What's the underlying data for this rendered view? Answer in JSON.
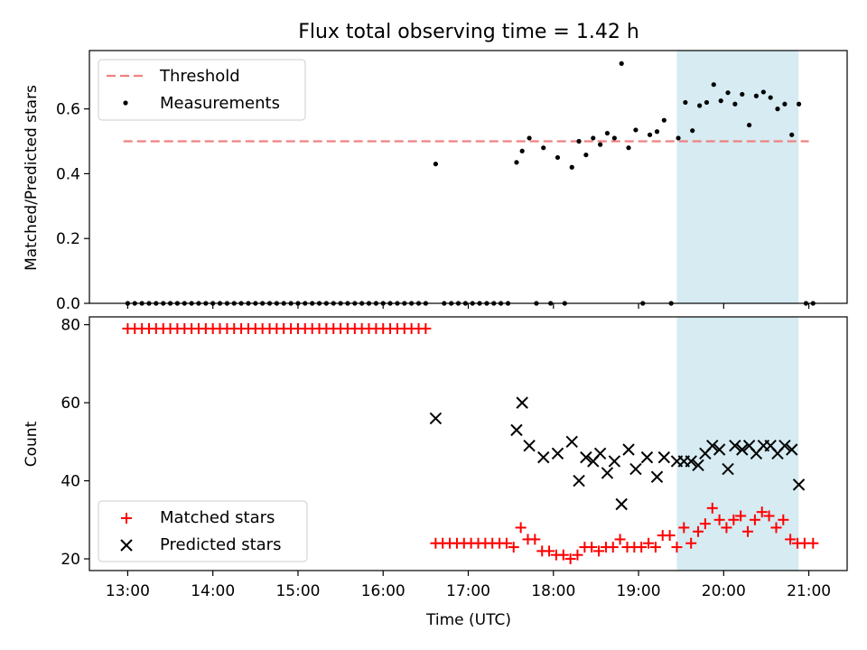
{
  "chart_data": [
    {
      "type": "scatter",
      "title": "Flux total observing time = 1.42 h",
      "xlabel": "",
      "ylabel": "Matched/Predicted stars",
      "ylim": [
        0,
        0.78
      ],
      "xlim": [
        12.55,
        21.45
      ],
      "yticks": [
        0.0,
        0.2,
        0.4,
        0.6
      ],
      "ytick_labels": [
        "0.0",
        "0.2",
        "0.4",
        "0.6"
      ],
      "highlight_span": [
        19.45,
        20.88
      ],
      "threshold": {
        "name": "Threshold",
        "y": 0.5,
        "x": [
          12.95,
          21.0
        ],
        "color": "#f08080"
      },
      "legend_loc": "upper-left",
      "series": [
        {
          "name": "Measurements",
          "color": "#000000",
          "x": [
            13.0,
            13.083,
            13.167,
            13.25,
            13.333,
            13.417,
            13.5,
            13.583,
            13.667,
            13.75,
            13.833,
            13.917,
            14.0,
            14.083,
            14.167,
            14.25,
            14.333,
            14.417,
            14.5,
            14.583,
            14.667,
            14.75,
            14.833,
            14.917,
            15.0,
            15.083,
            15.167,
            15.25,
            15.333,
            15.417,
            15.5,
            15.583,
            15.667,
            15.75,
            15.833,
            15.917,
            16.0,
            16.083,
            16.167,
            16.25,
            16.333,
            16.417,
            16.5,
            16.617,
            16.717,
            16.8,
            16.883,
            16.967,
            17.05,
            17.133,
            17.217,
            17.3,
            17.383,
            17.467,
            17.567,
            17.633,
            17.717,
            17.8,
            17.883,
            17.967,
            18.05,
            18.133,
            18.217,
            18.3,
            18.383,
            18.467,
            18.55,
            18.633,
            18.717,
            18.8,
            18.883,
            18.967,
            19.05,
            19.133,
            19.217,
            19.3,
            19.383,
            19.467,
            19.55,
            19.633,
            19.717,
            19.8,
            19.883,
            19.967,
            20.05,
            20.133,
            20.217,
            20.3,
            20.383,
            20.467,
            20.55,
            20.633,
            20.717,
            20.8,
            20.883,
            20.967,
            21.05
          ],
          "y": [
            0,
            0,
            0,
            0,
            0,
            0,
            0,
            0,
            0,
            0,
            0,
            0,
            0,
            0,
            0,
            0,
            0,
            0,
            0,
            0,
            0,
            0,
            0,
            0,
            0,
            0,
            0,
            0,
            0,
            0,
            0,
            0,
            0,
            0,
            0,
            0,
            0,
            0,
            0,
            0,
            0,
            0,
            0,
            0.43,
            0,
            0,
            0,
            0,
            0,
            0,
            0,
            0,
            0,
            0,
            0.435,
            0.47,
            0.51,
            0,
            0.48,
            0,
            0.45,
            0,
            0.42,
            0.5,
            0.458,
            0.51,
            0.49,
            0.525,
            0.51,
            0.74,
            0.48,
            0.535,
            0,
            0.52,
            0.53,
            0.565,
            0,
            0.51,
            0.62,
            0.533,
            0.61,
            0.62,
            0.675,
            0.625,
            0.65,
            0.615,
            0.645,
            0.55,
            0.64,
            0.652,
            0.635,
            0.6,
            0.615,
            0.52,
            0.615,
            0,
            0
          ]
        }
      ]
    },
    {
      "type": "scatter",
      "title": "",
      "xlabel": "Time (UTC)",
      "ylabel": "Count",
      "ylim": [
        17,
        82
      ],
      "xlim": [
        12.55,
        21.45
      ],
      "yticks": [
        20,
        40,
        60,
        80
      ],
      "ytick_labels": [
        "20",
        "40",
        "60",
        "80"
      ],
      "xticks": [
        13,
        14,
        15,
        16,
        17,
        18,
        19,
        20,
        21
      ],
      "xtick_labels": [
        "13:00",
        "14:00",
        "15:00",
        "16:00",
        "17:00",
        "18:00",
        "19:00",
        "20:00",
        "21:00"
      ],
      "highlight_span": [
        19.45,
        20.88
      ],
      "legend_loc": "lower-left",
      "series": [
        {
          "name": "Matched stars",
          "marker": "plus",
          "color": "#ff0000",
          "x": [
            13.0,
            13.083,
            13.167,
            13.25,
            13.333,
            13.417,
            13.5,
            13.583,
            13.667,
            13.75,
            13.833,
            13.917,
            14.0,
            14.083,
            14.167,
            14.25,
            14.333,
            14.417,
            14.5,
            14.583,
            14.667,
            14.75,
            14.833,
            14.917,
            15.0,
            15.083,
            15.167,
            15.25,
            15.333,
            15.417,
            15.5,
            15.583,
            15.667,
            15.75,
            15.833,
            15.917,
            16.0,
            16.083,
            16.167,
            16.25,
            16.333,
            16.417,
            16.5,
            16.617,
            16.7,
            16.783,
            16.867,
            16.95,
            17.033,
            17.117,
            17.2,
            17.283,
            17.367,
            17.45,
            17.533,
            17.617,
            17.7,
            17.783,
            17.867,
            17.95,
            18.033,
            18.117,
            18.2,
            18.283,
            18.367,
            18.45,
            18.533,
            18.617,
            18.7,
            18.783,
            18.867,
            18.95,
            19.033,
            19.117,
            19.2,
            19.283,
            19.367,
            19.45,
            19.533,
            19.617,
            19.7,
            19.783,
            19.867,
            19.95,
            20.033,
            20.117,
            20.2,
            20.283,
            20.367,
            20.45,
            20.533,
            20.617,
            20.7,
            20.783,
            20.867,
            20.95,
            21.05
          ],
          "y": [
            79,
            79,
            79,
            79,
            79,
            79,
            79,
            79,
            79,
            79,
            79,
            79,
            79,
            79,
            79,
            79,
            79,
            79,
            79,
            79,
            79,
            79,
            79,
            79,
            79,
            79,
            79,
            79,
            79,
            79,
            79,
            79,
            79,
            79,
            79,
            79,
            79,
            79,
            79,
            79,
            79,
            79,
            79,
            24,
            24,
            24,
            24,
            24,
            24,
            24,
            24,
            24,
            24,
            24,
            23,
            28,
            25,
            25,
            22,
            22,
            21,
            21,
            20,
            21,
            23,
            23,
            22,
            23,
            23,
            25,
            23,
            23,
            23,
            24,
            23,
            26,
            26,
            23,
            28,
            24,
            27,
            29,
            33,
            30,
            28,
            30,
            31,
            27,
            30,
            32,
            31,
            28,
            30,
            25,
            24,
            24,
            24
          ]
        },
        {
          "name": "Predicted stars",
          "marker": "x",
          "color": "#000000",
          "x": [
            16.617,
            17.567,
            17.633,
            17.717,
            17.883,
            18.05,
            18.217,
            18.3,
            18.383,
            18.467,
            18.55,
            18.633,
            18.717,
            18.8,
            18.883,
            18.967,
            19.1,
            19.217,
            19.3,
            19.45,
            19.533,
            19.617,
            19.7,
            19.783,
            19.867,
            19.95,
            20.05,
            20.133,
            20.217,
            20.3,
            20.383,
            20.467,
            20.55,
            20.633,
            20.717,
            20.8,
            20.883
          ],
          "y": [
            56,
            53,
            60,
            49,
            46,
            47,
            50,
            40,
            46,
            45,
            47,
            42,
            45,
            34,
            48,
            43,
            46,
            41,
            46,
            45,
            45,
            45,
            44,
            47,
            49,
            48,
            43,
            49,
            48,
            49,
            47,
            49,
            49,
            47,
            49,
            48,
            39
          ]
        }
      ]
    }
  ]
}
